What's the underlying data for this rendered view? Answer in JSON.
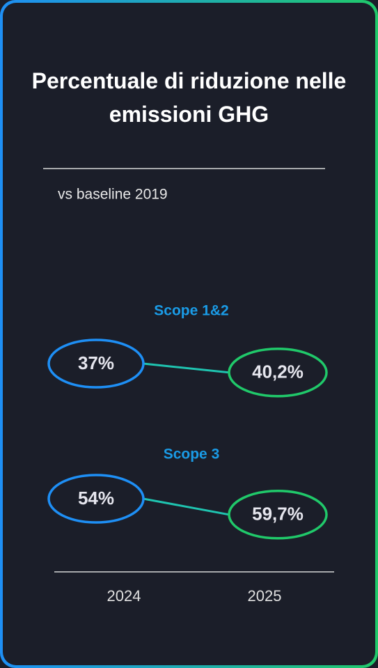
{
  "chart_data": {
    "type": "slope",
    "title": "Percentuale di riduzione nelle emissioni GHG",
    "subtitle": "vs baseline 2019",
    "categories": [
      "2024",
      "2025"
    ],
    "colors": [
      "#1e8ff5",
      "#20c96a"
    ],
    "series": [
      {
        "name": "Scope 1&2",
        "color": "#1a9be6",
        "values": [
          37,
          40.2
        ],
        "value_labels": [
          "37%",
          "40,2%"
        ]
      },
      {
        "name": "Scope 3",
        "color": "#1a9be6",
        "values": [
          54,
          59.7
        ],
        "value_labels": [
          "54%",
          "59,7%"
        ]
      }
    ]
  }
}
